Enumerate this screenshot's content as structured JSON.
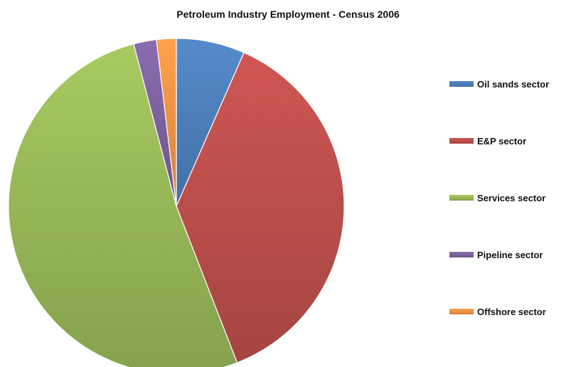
{
  "chart_data": {
    "type": "pie",
    "title": "Petroleum Industry Employment - Census 2006",
    "series": [
      {
        "name": "Oil sands sector",
        "value": 6.6,
        "color": "#4F81BD"
      },
      {
        "name": "E&P sector",
        "value": 37.5,
        "color": "#C0504D"
      },
      {
        "name": "Services sector",
        "value": 51.8,
        "color": "#9BBB59"
      },
      {
        "name": "Pipeline sector",
        "value": 2.2,
        "color": "#8064A2"
      },
      {
        "name": "Offshore sector",
        "value": 1.9,
        "color": "#F79646"
      }
    ],
    "legend_position": "right"
  }
}
